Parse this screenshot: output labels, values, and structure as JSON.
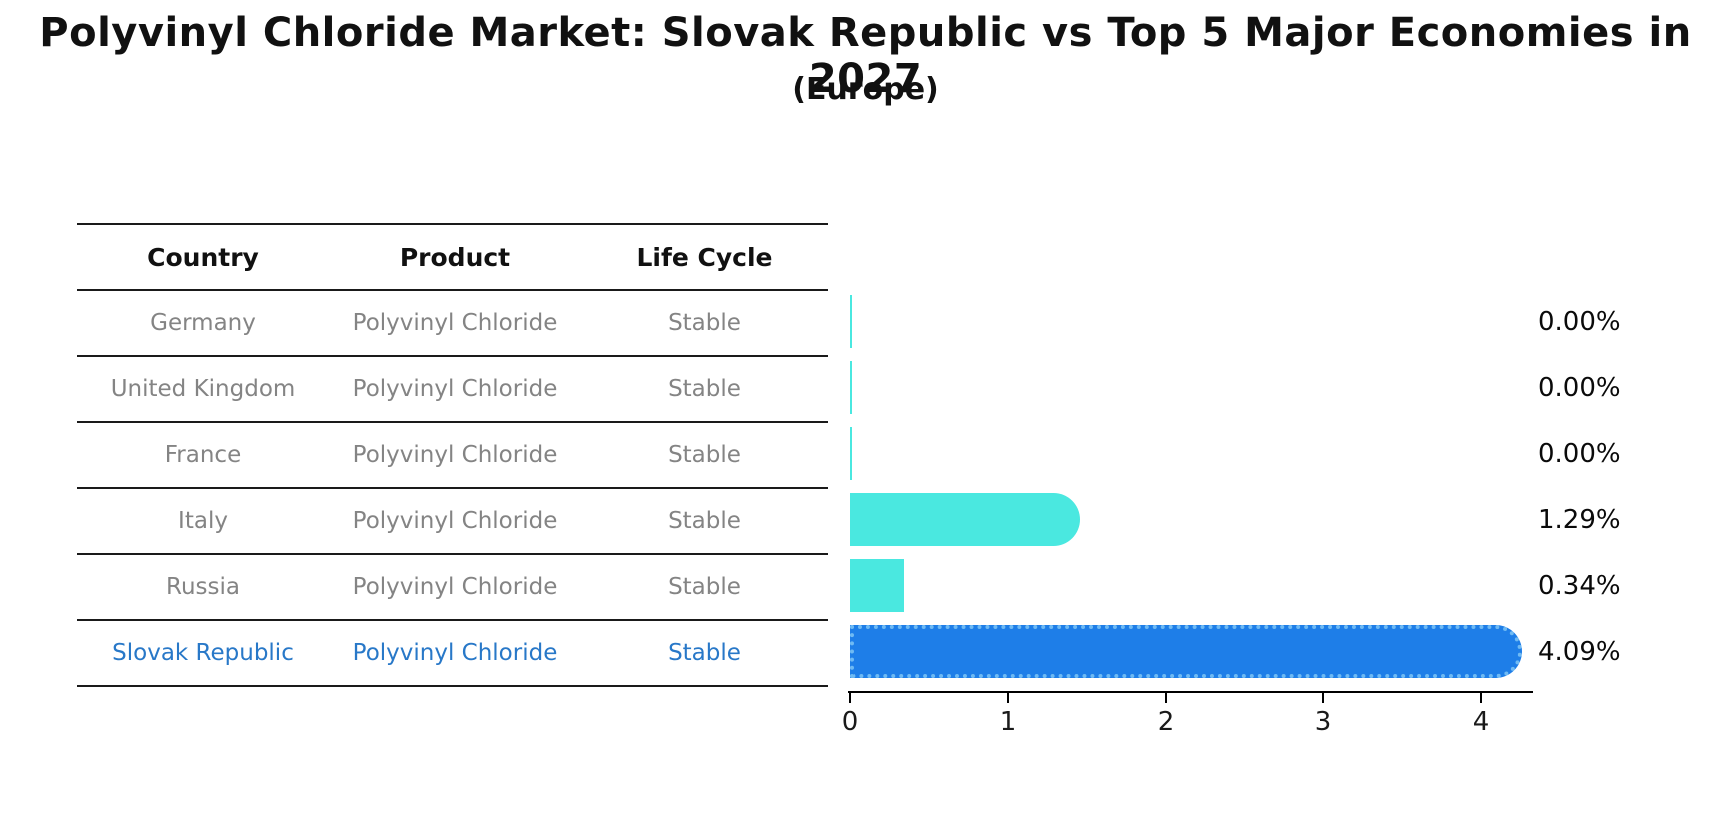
{
  "title": "Polyvinyl Chloride Market: Slovak Republic vs Top 5 Major Economies in 2027",
  "subtitle": "(Europe)",
  "table": {
    "headers": [
      "Country",
      "Product",
      "Life Cycle"
    ],
    "rows": [
      {
        "country": "Germany",
        "product": "Polyvinyl Chloride",
        "life_cycle": "Stable"
      },
      {
        "country": "United Kingdom",
        "product": "Polyvinyl Chloride",
        "life_cycle": "Stable"
      },
      {
        "country": "France",
        "product": "Polyvinyl Chloride",
        "life_cycle": "Stable"
      },
      {
        "country": "Italy",
        "product": "Polyvinyl Chloride",
        "life_cycle": "Stable"
      },
      {
        "country": "Russia",
        "product": "Polyvinyl Chloride",
        "life_cycle": "Stable"
      },
      {
        "country": "Slovak Republic",
        "product": "Polyvinyl Chloride",
        "life_cycle": "Stable"
      }
    ]
  },
  "chart": {
    "value_labels": [
      "0.00%",
      "0.00%",
      "0.00%",
      "1.29%",
      "0.34%",
      "4.09%"
    ],
    "x_ticks": [
      "0",
      "1",
      "2",
      "3",
      "4"
    ]
  },
  "chart_data": {
    "type": "bar",
    "orientation": "horizontal",
    "title": "Polyvinyl Chloride Market: Slovak Republic vs Top 5 Major Economies in 2027",
    "subtitle": "(Europe)",
    "categories": [
      "Germany",
      "United Kingdom",
      "France",
      "Italy",
      "Russia",
      "Slovak Republic"
    ],
    "values": [
      0.0,
      0.0,
      0.0,
      1.29,
      0.34,
      4.09
    ],
    "value_labels": [
      "0.00%",
      "0.00%",
      "0.00%",
      "1.29%",
      "0.34%",
      "4.09%"
    ],
    "xlabel": "",
    "ylabel": "",
    "xlim": [
      0,
      4.3
    ],
    "x_tick_values": [
      0,
      1,
      2,
      3,
      4
    ],
    "grid": false,
    "legend": "none",
    "highlight_category": "Slovak Republic",
    "colors": {
      "bar_default": "#4AE8E0",
      "bar_highlight": "#1E7EE8",
      "highlight_hatch_edge": "#6FBAF3",
      "highlight_text": "#2878C8",
      "cell_text": "#848484",
      "header_text": "#111111"
    }
  }
}
